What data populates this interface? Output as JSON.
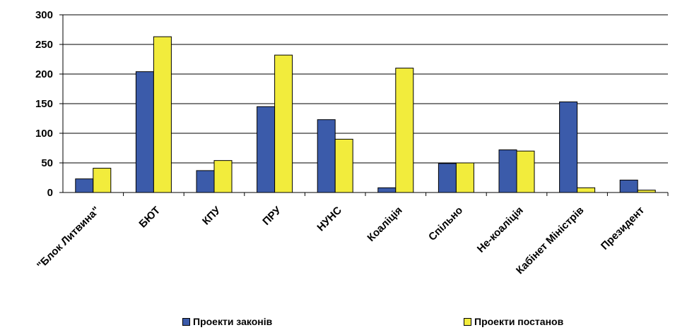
{
  "chart_data": {
    "type": "bar",
    "categories": [
      "\"Блок Литвина\"",
      "БЮТ",
      "КПУ",
      "ПРУ",
      "НУНС",
      "Коаліція",
      "Спільно",
      "Не-коаліція",
      "Кабінет Міністрів",
      "Президент"
    ],
    "series": [
      {
        "name": "Проекти законів",
        "color": "#3B5BAA",
        "values": [
          23,
          204,
          37,
          145,
          123,
          8,
          49,
          72,
          153,
          21
        ]
      },
      {
        "name": "Проекти постанов",
        "color": "#F2EC3C",
        "values": [
          41,
          263,
          54,
          232,
          90,
          210,
          50,
          70,
          8,
          4
        ]
      }
    ],
    "yticks": [
      "0",
      "50",
      "100",
      "150",
      "200",
      "250",
      "300"
    ],
    "ylim": [
      0,
      300
    ],
    "grid": true,
    "legend_position": "bottom"
  }
}
